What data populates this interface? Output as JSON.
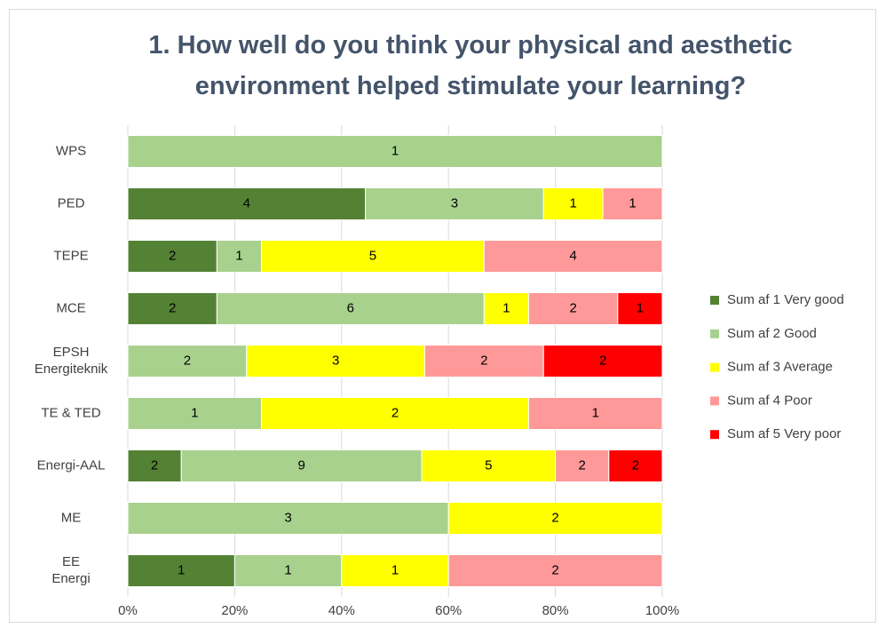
{
  "chart_data": {
    "type": "bar",
    "orientation": "horizontal",
    "stacking": "percent",
    "title": "1. How well do you think your physical and aesthetic environment helped stimulate your learning?",
    "categories": [
      "WPS",
      "PED",
      "TEPE",
      "MCE",
      "EPSH\nEnergiteknik",
      "TE & TED",
      "Energi-AAL",
      "ME",
      "EE\nEnergi"
    ],
    "series": [
      {
        "name": "Sum af 1 Very good",
        "color": "#548235",
        "values": [
          null,
          4,
          2,
          2,
          null,
          null,
          2,
          null,
          1
        ]
      },
      {
        "name": "Sum af 2 Good",
        "color": "#a9d18e",
        "values": [
          1,
          3,
          1,
          6,
          2,
          1,
          9,
          3,
          1
        ]
      },
      {
        "name": "Sum af 3 Average",
        "color": "#ffff00",
        "values": [
          null,
          1,
          5,
          1,
          3,
          2,
          5,
          2,
          1
        ]
      },
      {
        "name": "Sum af 4 Poor",
        "color": "#ff9999",
        "values": [
          null,
          1,
          4,
          2,
          2,
          1,
          2,
          null,
          2
        ]
      },
      {
        "name": "Sum af 5 Very poor",
        "color": "#ff0000",
        "values": [
          null,
          null,
          null,
          1,
          2,
          null,
          2,
          null,
          null
        ]
      }
    ],
    "xlim": [
      0,
      100
    ],
    "xticks": [
      {
        "value": 0,
        "label": "0%"
      },
      {
        "value": 20,
        "label": "20%"
      },
      {
        "value": 40,
        "label": "40%"
      },
      {
        "value": 60,
        "label": "60%"
      },
      {
        "value": 80,
        "label": "80%"
      },
      {
        "value": 100,
        "label": "100%"
      }
    ],
    "grid": true,
    "legend": "right"
  }
}
